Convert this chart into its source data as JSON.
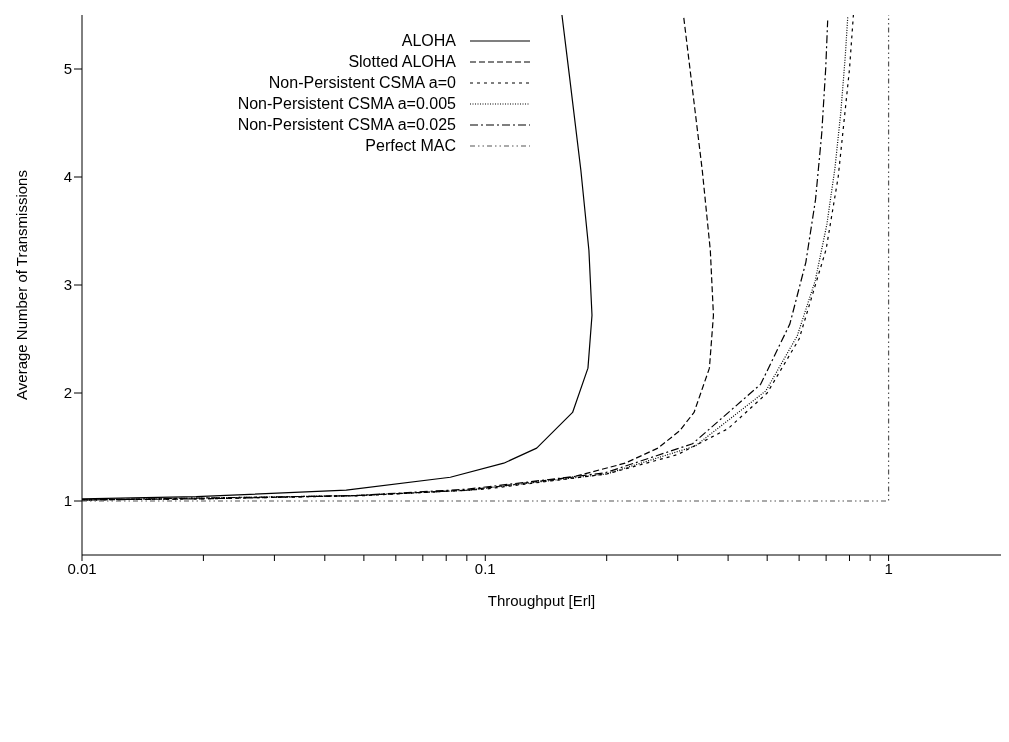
{
  "chart_data": {
    "type": "line",
    "xlabel": "Throughput [Erl]",
    "ylabel": "Average Number of Transmissions",
    "log": "x",
    "xlim": [
      0.01,
      1.9
    ],
    "ylim": [
      0.5,
      5.5
    ],
    "xticks": [
      0.01,
      {
        "value": 0.02,
        "label": null
      },
      {
        "value": 0.03,
        "label": null
      },
      {
        "value": 0.04,
        "label": null
      },
      {
        "value": 0.05,
        "label": null
      },
      {
        "value": 0.06,
        "label": null
      },
      {
        "value": 0.07,
        "label": null
      },
      {
        "value": 0.08,
        "label": null
      },
      {
        "value": 0.09,
        "label": null
      },
      0.1,
      {
        "value": 0.2,
        "label": null
      },
      {
        "value": 0.3,
        "label": null
      },
      {
        "value": 0.4,
        "label": null
      },
      {
        "value": 0.5,
        "label": null
      },
      {
        "value": 0.6,
        "label": null
      },
      {
        "value": 0.7,
        "label": null
      },
      {
        "value": 0.8,
        "label": null
      },
      {
        "value": 0.9,
        "label": null
      },
      1
    ],
    "yticks": [
      1,
      2,
      3,
      4,
      5
    ],
    "legend": "top left",
    "marker": "none",
    "series": [
      {
        "name": "ALOHA",
        "color": "#000000",
        "line_style": "solid",
        "x": [
          0.01,
          0.0192,
          0.0452,
          0.0819,
          0.1111,
          0.1341,
          0.1646,
          0.1797,
          0.1839,
          0.1807,
          0.1726,
          0.1615,
          0.1549
        ],
        "values": [
          1.02,
          1.04,
          1.1,
          1.22,
          1.35,
          1.49,
          1.82,
          2.23,
          2.72,
          3.32,
          4.06,
          4.95,
          5.5
        ]
      },
      {
        "name": "Slotted ALOHA",
        "color": "#000000",
        "line_style": "dashed",
        "x": [
          0.01,
          0.0196,
          0.0476,
          0.0905,
          0.1637,
          0.2222,
          0.2681,
          0.3033,
          0.3293,
          0.3595,
          0.3679,
          0.3614,
          0.3452,
          0.323,
          0.31
        ],
        "values": [
          1.01,
          1.02,
          1.05,
          1.1,
          1.22,
          1.35,
          1.49,
          1.65,
          1.82,
          2.23,
          2.72,
          3.32,
          4.06,
          4.95,
          5.5
        ]
      },
      {
        "name": "Non-Persistent CSMA a=0",
        "color": "#000000",
        "line_style": "shortdash",
        "x": [
          0.01,
          0.02,
          0.05,
          0.1,
          0.2,
          0.3,
          0.4,
          0.5,
          0.6,
          0.7,
          0.75,
          0.8,
          0.818
        ],
        "values": [
          1.01,
          1.02,
          1.05,
          1.11,
          1.25,
          1.43,
          1.67,
          2,
          2.5,
          3.33,
          4,
          5,
          5.5
        ]
      },
      {
        "name": "Non-Persistent CSMA a=0.005",
        "color": "#000000",
        "line_style": "dotted",
        "x": [
          0.0101,
          0.0476,
          0.0908,
          0.1996,
          0.3319,
          0.4963,
          0.5937,
          0.6578,
          0.7029,
          0.7361,
          0.7613,
          0.781,
          0.7923
        ],
        "values": [
          1.01,
          1.05,
          1.1,
          1.25,
          1.51,
          2.02,
          2.53,
          3.04,
          3.56,
          4.08,
          4.6,
          5.12,
          5.49
        ]
      },
      {
        "name": "Non-Persistent CSMA a=0.025",
        "color": "#000000",
        "line_style": "dashdot",
        "x": [
          0.0101,
          0.0475,
          0.0905,
          0.1978,
          0.3265,
          0.4816,
          0.5692,
          0.6235,
          0.6589,
          0.6826,
          0.6985,
          0.7063
        ],
        "values": [
          1.01,
          1.05,
          1.11,
          1.26,
          1.53,
          2.08,
          2.64,
          3.21,
          3.79,
          4.4,
          5.01,
          5.45
        ]
      },
      {
        "name": "Perfect MAC",
        "color": "#555555",
        "line_style": "dashdotdot",
        "x": [
          0.01,
          1,
          1
        ],
        "values": [
          1,
          1,
          5.5
        ]
      }
    ]
  }
}
